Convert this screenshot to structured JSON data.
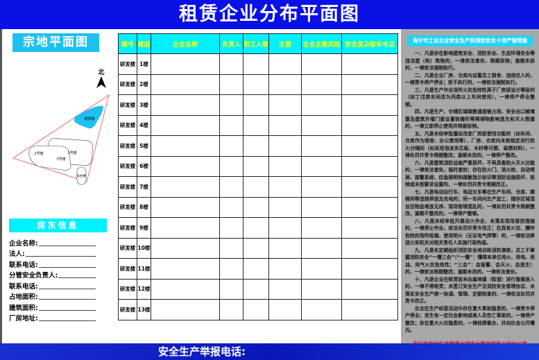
{
  "title": "租赁企业分布平面图",
  "left": {
    "plan_title": "宗地平面图",
    "north_label": "北",
    "buildings": [
      "研发楼",
      "1号楼",
      "2号楼",
      "3号楼",
      "综合楼"
    ],
    "owner_title": "房东信息",
    "owner_fields": [
      "企业名称:",
      "法人:",
      "联系电话:",
      "分管安全负责人:",
      "联系电话:",
      "占地面积:",
      "建筑面积:",
      "厂房地址:"
    ]
  },
  "table": {
    "headers": [
      "楼号",
      "楼层",
      "企业名称",
      "负责人",
      "职工人数",
      "主营",
      "企业主要风险",
      "安全员及联系电话"
    ],
    "rows": [
      {
        "building": "研发楼",
        "floor": "1楼"
      },
      {
        "building": "研发楼",
        "floor": "2楼"
      },
      {
        "building": "研发楼",
        "floor": "3楼"
      },
      {
        "building": "研发楼",
        "floor": "4楼"
      },
      {
        "building": "研发楼",
        "floor": "5楼"
      },
      {
        "building": "研发楼",
        "floor": "6楼"
      },
      {
        "building": "研发楼",
        "floor": "7楼"
      },
      {
        "building": "研发楼",
        "floor": "8楼"
      },
      {
        "building": "研发楼",
        "floor": "9楼"
      },
      {
        "building": "研发楼",
        "floor": "10楼"
      },
      {
        "building": "研发楼",
        "floor": "11楼"
      },
      {
        "building": "研发楼",
        "floor": "12楼"
      },
      {
        "building": "研发楼",
        "floor": "13楼"
      }
    ]
  },
  "right": {
    "title": "海宁市工业企业安全生产和消防安全十项严管措施",
    "items": [
      "一、凡是存在影响建筑安全、消防安全、生态环境安全等违法建（构）筑物的，一律依法查处，限期拆除；逾期未拆的，一律依法强制执行。",
      "二、凡是企业厂房、仓库内设置员工宿舍、违规住人的，一律责令停产停业；拒不执行的，一律依法强制执行。",
      "三、凡是生产作业场所火灾危险性高于厂房原设计等级的（如丁戊类车间改为丙类以上车间使用），一律停产停业整顿。",
      "四、凡是生产、仓储区域疏散通道被占用、安全出口被堵塞及建筑外墙门窗设置铁栅栏等障碍物影响逃生和灭火救援的，一律立即停止使用并限期拆除。",
      "五、凡是未经审批擅自改变厂房原使用功能的（如车间、仓库作为宿舍、办公使用等），厂房、仓库内未按规定进行防火分隔的（如采用泡沫夹芯板、木材等可燃、易燃材料），一律处罚并责令限期整改；逾期未改的，一律停产整改。",
      "六、凡是建筑消防设施严重损坏，不再具备防火灭火功能的，一律依法查处，临时查封；存在防火门、消火栓、自动喷淋、报警系统、应急照明和疏散指示标识等消防设施损坏、拆除或未按要求设置的，一律处罚并责令限期改正。",
      "七、凡是电动自行车、电动叉车等在生产车间、仓库、楼梯间等违规停放及充电的；同一车间内生产加工、储存区域混设目物品堆放无序、现场管理混乱的，一律处罚并责令限期整改，逾期不整改的，一律停产整顿。",
      "八、凡是未经审批开展动火作业、未落实现场管控措施的，一律停止作业，依法处罚并责令改正；在具有火灾、爆炸危险的场所吸烟、使用明火（无证电气焊等）的，一律依法移送公安机关对相关责任人实施行政拘留。",
      "九、凡是未定期组织消防安全培训和消防演练，员工不掌握消防安全“一懂三会”（“一懂”：懂得本单位用火、用电、用油、用气火灾危险性；“三会”：会报警、会灭火、会逃生）的，一律依法限期整改；逾期未改的，一律依法查处。",
      "十、凡是企业在租赁前未向属地镇（街道）进行备案准入的，一律不得租赁；未签订安全生产及消防安全管理协议、未落实安全生产统一协调、管理、定期检查的，一律依法处罚并责令改正。",
      "企业在生产经营活动中存在重大事故隐患的，一律责令停产停业；发生有一定社会影响或者人员伤亡事故的，一律停产整改；存在重大火灾隐患的，一律挂牌督办，并向社会公开曝光。"
    ],
    "signature": "海宁市安全生产隐患大排查大整治领导小组办公室"
  },
  "footer": {
    "hotline_label": "安全生产举报电话:"
  },
  "colors": {
    "title_blue": "#0a10e6",
    "cyan": "#00f0ff",
    "panel_gray": "#a8a8a8",
    "header_text": "#ffff00",
    "signature_red": "#e8141e"
  }
}
